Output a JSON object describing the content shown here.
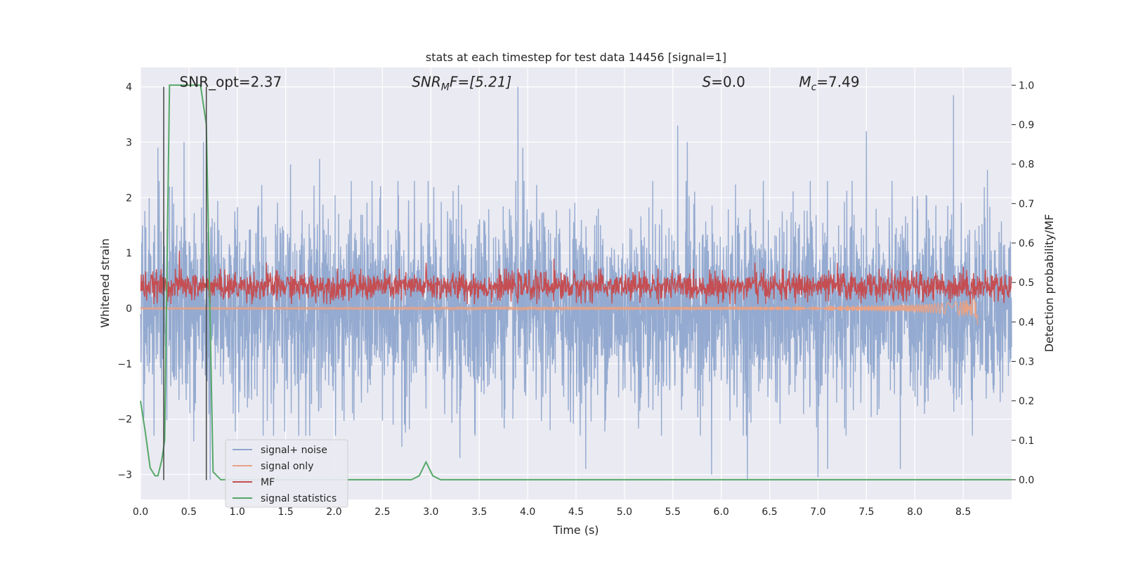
{
  "chart_data": {
    "type": "line",
    "title": "stats at each timestep for test data 14456 [signal=1]",
    "xlabel": "Time (s)",
    "ylabel": "Whitened strain",
    "ylabel_right": "Detection probability/MF",
    "xlim": [
      0.0,
      9.0
    ],
    "ylim": [
      -3.45,
      4.35
    ],
    "ylim_right": [
      -0.05,
      1.045
    ],
    "x_ticks": [
      0.0,
      0.5,
      1.0,
      1.5,
      2.0,
      2.5,
      3.0,
      3.5,
      4.0,
      4.5,
      5.0,
      5.5,
      6.0,
      6.5,
      7.0,
      7.5,
      8.0,
      8.5
    ],
    "x_tick_labels": [
      "0.0",
      "0.5",
      "1.0",
      "1.5",
      "2.0",
      "2.5",
      "3.0",
      "3.5",
      "4.0",
      "4.5",
      "5.0",
      "5.5",
      "6.0",
      "6.5",
      "7.0",
      "7.5",
      "8.0",
      "8.5"
    ],
    "y_ticks": [
      4,
      3,
      2,
      1,
      0,
      -1,
      -2,
      -3
    ],
    "y_tick_labels": [
      "4",
      "3",
      "2",
      "1",
      "0",
      "−1",
      "−2",
      "−3"
    ],
    "y_right_ticks": [
      1.0,
      0.9,
      0.8,
      0.7,
      0.6,
      0.5,
      0.4,
      0.3,
      0.2,
      0.1,
      0.0
    ],
    "y_right_tick_labels": [
      "1.0",
      "0.9",
      "0.8",
      "0.7",
      "0.6",
      "0.5",
      "0.4",
      "0.3",
      "0.2",
      "0.1",
      "0.0"
    ],
    "annotations": [
      {
        "text": "SNR_opt=2.37",
        "x": 0.2,
        "y": 4.1
      },
      {
        "text": "SNR",
        "sub": "M",
        "suffix": "F=[5.21]",
        "italic": true,
        "x": 2.6,
        "y": 4.1
      },
      {
        "text": "S",
        "suffix": "=0.0",
        "italic": true,
        "x": 5.6,
        "y": 4.1
      },
      {
        "text": "M",
        "sub": "c",
        "suffix": "=7.49",
        "italic": true,
        "x": 6.6,
        "y": 4.1
      }
    ],
    "vlines": [
      {
        "x": 0.24,
        "ymin": -3.1,
        "ymax": 4.0
      },
      {
        "x": 0.68,
        "ymin": -3.1,
        "ymax": 4.0
      }
    ],
    "grid": true,
    "legend_position": "lower-left",
    "series": [
      {
        "name": "signal+ noise",
        "axis": "left",
        "style": "noise",
        "color": "#8fa6cd",
        "x_range": [
          0.0,
          9.0
        ],
        "approx_band": [
          -1.8,
          1.8
        ],
        "peaks": [
          [
            0.02,
            1.5
          ],
          [
            0.18,
            2.9
          ],
          [
            0.3,
            2.2
          ],
          [
            0.45,
            3.0
          ],
          [
            0.55,
            -2.4
          ],
          [
            0.65,
            3.0
          ],
          [
            0.72,
            -3.1
          ],
          [
            1.55,
            2.6
          ],
          [
            1.85,
            2.7
          ],
          [
            2.7,
            -2.5
          ],
          [
            3.3,
            -2.7
          ],
          [
            3.9,
            4.0
          ],
          [
            3.95,
            2.9
          ],
          [
            4.6,
            -2.9
          ],
          [
            5.55,
            3.3
          ],
          [
            5.65,
            3.0
          ],
          [
            5.9,
            -3.0
          ],
          [
            6.27,
            -3.1
          ],
          [
            7.0,
            -3.05
          ],
          [
            7.1,
            -2.9
          ],
          [
            7.5,
            3.2
          ],
          [
            7.85,
            -2.9
          ],
          [
            8.4,
            3.85
          ],
          [
            8.75,
            2.5
          ]
        ]
      },
      {
        "name": "signal only",
        "axis": "left",
        "style": "chirp",
        "color": "#e8a285",
        "x_range": [
          0.0,
          8.65
        ],
        "peak_time": 8.65,
        "peak_amplitude": -0.3
      },
      {
        "name": "MF",
        "axis": "right",
        "style": "mf-noise",
        "color": "#c44e52",
        "x_range": [
          0.0,
          9.0
        ],
        "approx_band": [
          0.45,
          0.53
        ],
        "peaks": [
          [
            0.4,
            0.58
          ],
          [
            1.3,
            0.55
          ],
          [
            2.95,
            0.55
          ],
          [
            4.27,
            0.56
          ],
          [
            6.35,
            0.55
          ],
          [
            7.2,
            0.55
          ],
          [
            8.5,
            0.54
          ]
        ]
      },
      {
        "name": "signal statistics",
        "axis": "right",
        "style": "line",
        "color": "#55a868",
        "x": [
          0.0,
          0.05,
          0.1,
          0.15,
          0.18,
          0.22,
          0.25,
          0.3,
          0.35,
          0.45,
          0.55,
          0.62,
          0.68,
          0.75,
          0.83,
          0.9,
          1.0,
          2.5,
          2.8,
          2.88,
          2.95,
          3.02,
          3.1,
          3.3,
          9.0
        ],
        "values": [
          0.2,
          0.12,
          0.03,
          0.01,
          0.01,
          0.05,
          0.1,
          1.0,
          1.0,
          1.0,
          1.0,
          1.0,
          0.9,
          0.02,
          0.0,
          0.0,
          0.0,
          0.0,
          0.0,
          0.01,
          0.045,
          0.01,
          0.0,
          0.0,
          0.0
        ]
      }
    ]
  }
}
